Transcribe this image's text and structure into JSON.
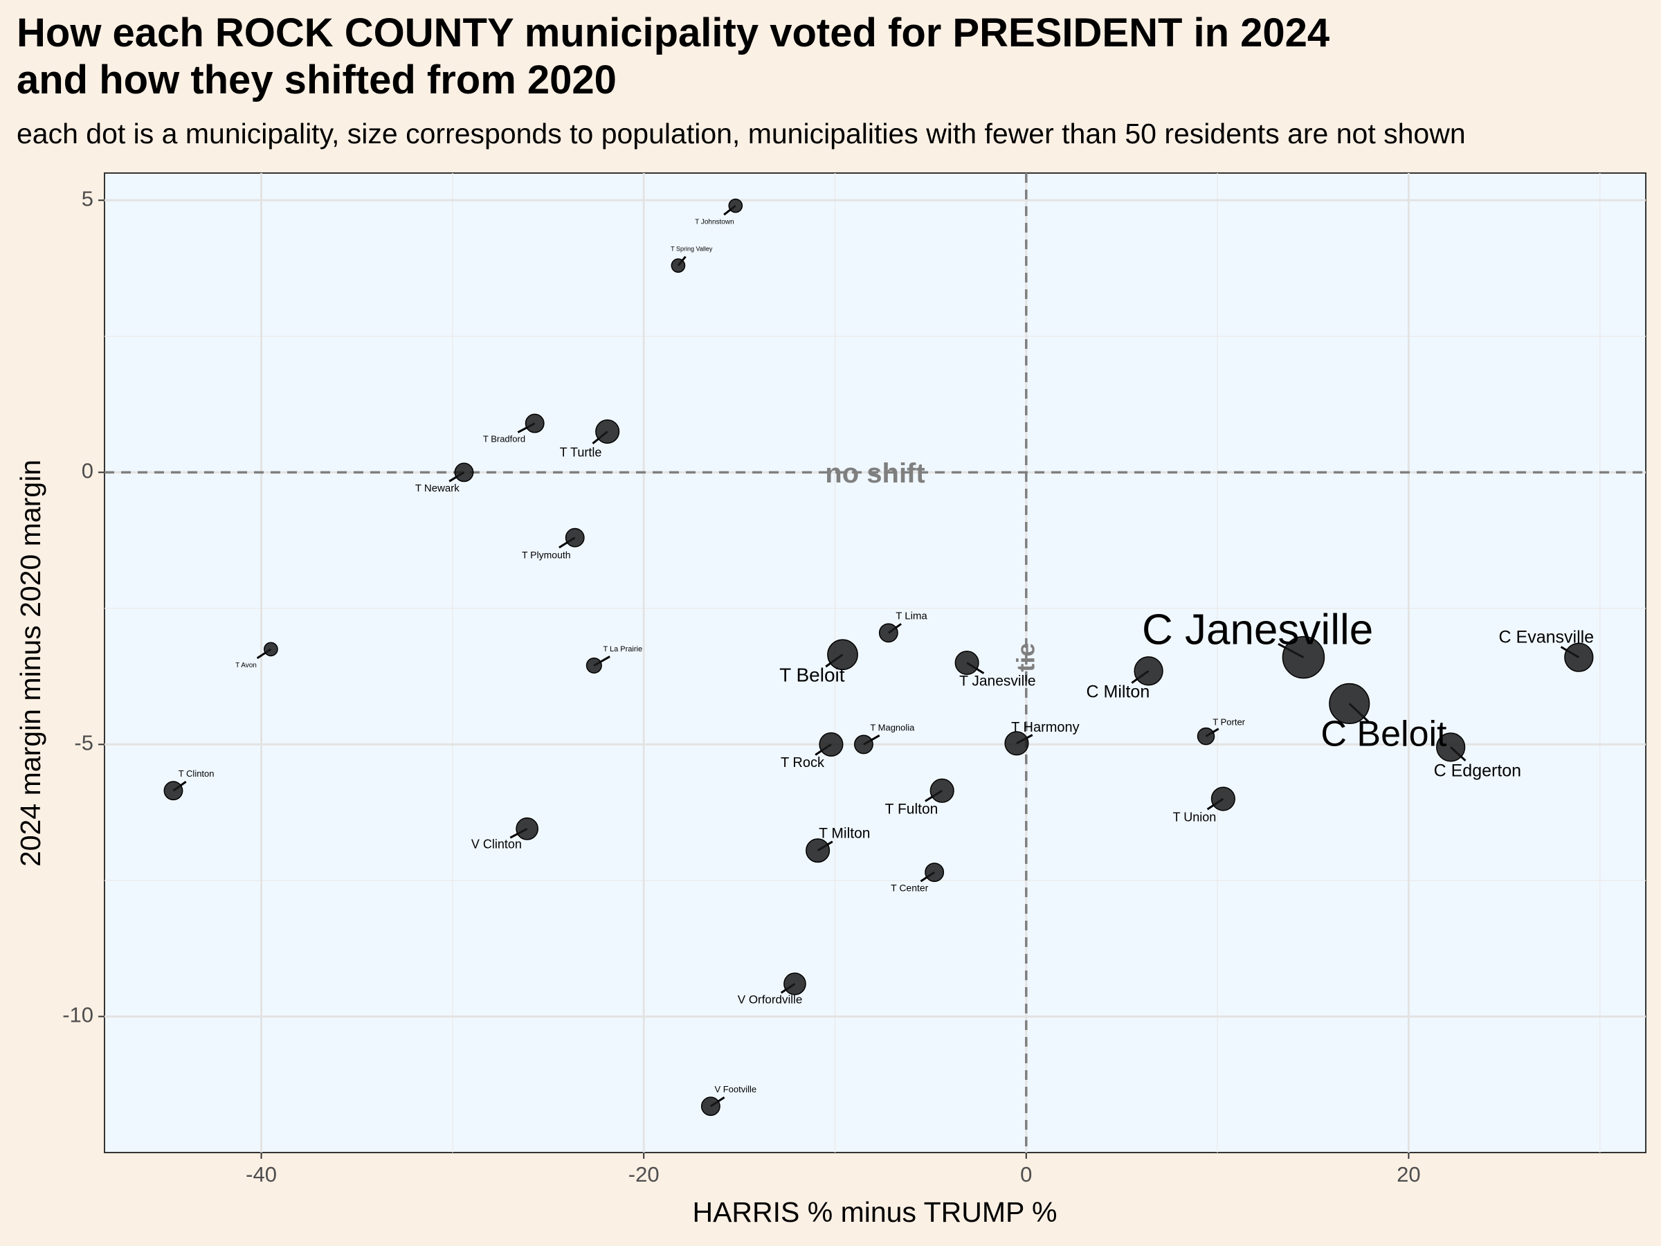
{
  "chart_data": {
    "type": "scatter",
    "title": [
      "How each ROCK COUNTY municipality voted for PRESIDENT in 2024",
      "and how they shifted from 2020"
    ],
    "subtitle": "each dot is a municipality, size corresponds to population, municipalities with fewer than 50 residents are not shown",
    "xlabel": "HARRIS % minus TRUMP %",
    "ylabel": "2024 margin minus 2020 margin",
    "xlim": [
      -48.2,
      32.4
    ],
    "ylim": [
      -12.5,
      5.5
    ],
    "x_ticks": [
      -40,
      -20,
      0,
      20
    ],
    "y_ticks": [
      5,
      0,
      -5,
      -10
    ],
    "x_tick_labels": [
      "-40",
      "-20",
      "0",
      "20"
    ],
    "y_tick_labels": [
      "5",
      "0",
      "-5",
      "-10"
    ],
    "grid": true,
    "reference_lines": [
      {
        "orientation": "horizontal",
        "value": 0,
        "label": "no shift"
      },
      {
        "orientation": "vertical",
        "value": 0,
        "label": "tie"
      }
    ],
    "colors": {
      "background": "#fbf0e4",
      "panel": "#f0f8ff",
      "point": "#1a1a1a",
      "reference": "#7f7f7f"
    },
    "points": [
      {
        "name": "T Johnstown",
        "x": -15.2,
        "y": 4.9,
        "size": 0.15,
        "label": "T Johnstown",
        "lx": -16.3,
        "ly": 4.6,
        "fs": 10
      },
      {
        "name": "T Spring Valley",
        "x": -18.2,
        "y": 3.8,
        "size": 0.15,
        "label": "T Spring Valley",
        "lx": -17.5,
        "ly": 4.1,
        "fs": 9
      },
      {
        "name": "T Bradford",
        "x": -25.7,
        "y": 0.9,
        "size": 0.3,
        "label": "T Bradford",
        "lx": -27.3,
        "ly": 0.6,
        "fs": 13
      },
      {
        "name": "T Turtle",
        "x": -21.9,
        "y": 0.75,
        "size": 0.45,
        "label": "T Turtle",
        "lx": -23.3,
        "ly": 0.35,
        "fs": 18
      },
      {
        "name": "T Newark",
        "x": -29.4,
        "y": 0.0,
        "size": 0.3,
        "label": "T Newark",
        "lx": -30.8,
        "ly": -0.3,
        "fs": 15
      },
      {
        "name": "T Plymouth",
        "x": -23.6,
        "y": -1.2,
        "size": 0.3,
        "label": "T Plymouth",
        "lx": -25.1,
        "ly": -1.53,
        "fs": 14
      },
      {
        "name": "T Avon",
        "x": -39.5,
        "y": -3.25,
        "size": 0.15,
        "label": "T Avon",
        "lx": -40.8,
        "ly": -3.55,
        "fs": 10
      },
      {
        "name": "T La Prairie",
        "x": -22.6,
        "y": -3.55,
        "size": 0.2,
        "label": "T La Prairie",
        "lx": -21.1,
        "ly": -3.25,
        "fs": 11
      },
      {
        "name": "T Clinton",
        "x": -44.6,
        "y": -5.85,
        "size": 0.3,
        "label": "T Clinton",
        "lx": -43.4,
        "ly": -5.55,
        "fs": 13
      },
      {
        "name": "V Clinton",
        "x": -26.1,
        "y": -6.55,
        "size": 0.4,
        "label": "V Clinton",
        "lx": -27.7,
        "ly": -6.85,
        "fs": 18
      },
      {
        "name": "T Lima",
        "x": -7.2,
        "y": -2.95,
        "size": 0.3,
        "label": "T Lima",
        "lx": -6.0,
        "ly": -2.65,
        "fs": 15
      },
      {
        "name": "T Beloit",
        "x": -9.6,
        "y": -3.35,
        "size": 0.65,
        "label": "T Beloit",
        "lx": -11.2,
        "ly": -3.75,
        "fs": 28
      },
      {
        "name": "T Janesville",
        "x": -3.1,
        "y": -3.5,
        "size": 0.45,
        "label": "T Janesville",
        "lx": -1.5,
        "ly": -3.85,
        "fs": 21
      },
      {
        "name": "T Magnolia",
        "x": -8.5,
        "y": -5.0,
        "size": 0.3,
        "label": "T Magnolia",
        "lx": -7.0,
        "ly": -4.7,
        "fs": 13
      },
      {
        "name": "T Rock",
        "x": -10.2,
        "y": -5.0,
        "size": 0.45,
        "label": "T Rock",
        "lx": -11.7,
        "ly": -5.35,
        "fs": 20
      },
      {
        "name": "T Harmony",
        "x": -0.5,
        "y": -4.98,
        "size": 0.45,
        "label": "T Harmony",
        "lx": 1.0,
        "ly": -4.7,
        "fs": 20
      },
      {
        "name": "T Fulton",
        "x": -4.4,
        "y": -5.85,
        "size": 0.45,
        "label": "T Fulton",
        "lx": -6.0,
        "ly": -6.2,
        "fs": 21
      },
      {
        "name": "T Milton",
        "x": -10.9,
        "y": -6.95,
        "size": 0.45,
        "label": "T Milton",
        "lx": -9.5,
        "ly": -6.65,
        "fs": 21
      },
      {
        "name": "T Center",
        "x": -4.8,
        "y": -7.35,
        "size": 0.3,
        "label": "T Center",
        "lx": -6.1,
        "ly": -7.65,
        "fs": 14
      },
      {
        "name": "V Orfordville",
        "x": -12.1,
        "y": -9.4,
        "size": 0.4,
        "label": "V Orfordville",
        "lx": -13.4,
        "ly": -9.7,
        "fs": 17
      },
      {
        "name": "V Footville",
        "x": -16.5,
        "y": -11.65,
        "size": 0.3,
        "label": "V Footville",
        "lx": -15.2,
        "ly": -11.35,
        "fs": 13
      },
      {
        "name": "C Milton",
        "x": 6.4,
        "y": -3.65,
        "size": 0.6,
        "label": "C Milton",
        "lx": 4.8,
        "ly": -4.05,
        "fs": 25
      },
      {
        "name": "C Janesville",
        "x": 14.5,
        "y": -3.4,
        "size": 1.0,
        "label": "C Janesville",
        "lx": 12.1,
        "ly": -2.95,
        "fs": 62
      },
      {
        "name": "T Porter",
        "x": 9.4,
        "y": -4.85,
        "size": 0.25,
        "label": "T Porter",
        "lx": 10.6,
        "ly": -4.6,
        "fs": 13
      },
      {
        "name": "C Beloit",
        "x": 16.9,
        "y": -4.25,
        "size": 0.95,
        "label": "C Beloit",
        "lx": 18.7,
        "ly": -4.85,
        "fs": 52
      },
      {
        "name": "C Evansville",
        "x": 28.9,
        "y": -3.4,
        "size": 0.6,
        "label": "C Evansville",
        "lx": 27.2,
        "ly": -3.05,
        "fs": 25
      },
      {
        "name": "C Edgerton",
        "x": 22.2,
        "y": -5.05,
        "size": 0.6,
        "label": "C Edgerton",
        "lx": 23.6,
        "ly": -5.5,
        "fs": 25
      },
      {
        "name": "T Union",
        "x": 10.3,
        "y": -6.0,
        "size": 0.45,
        "label": "T Union",
        "lx": 8.8,
        "ly": -6.35,
        "fs": 18
      }
    ]
  }
}
